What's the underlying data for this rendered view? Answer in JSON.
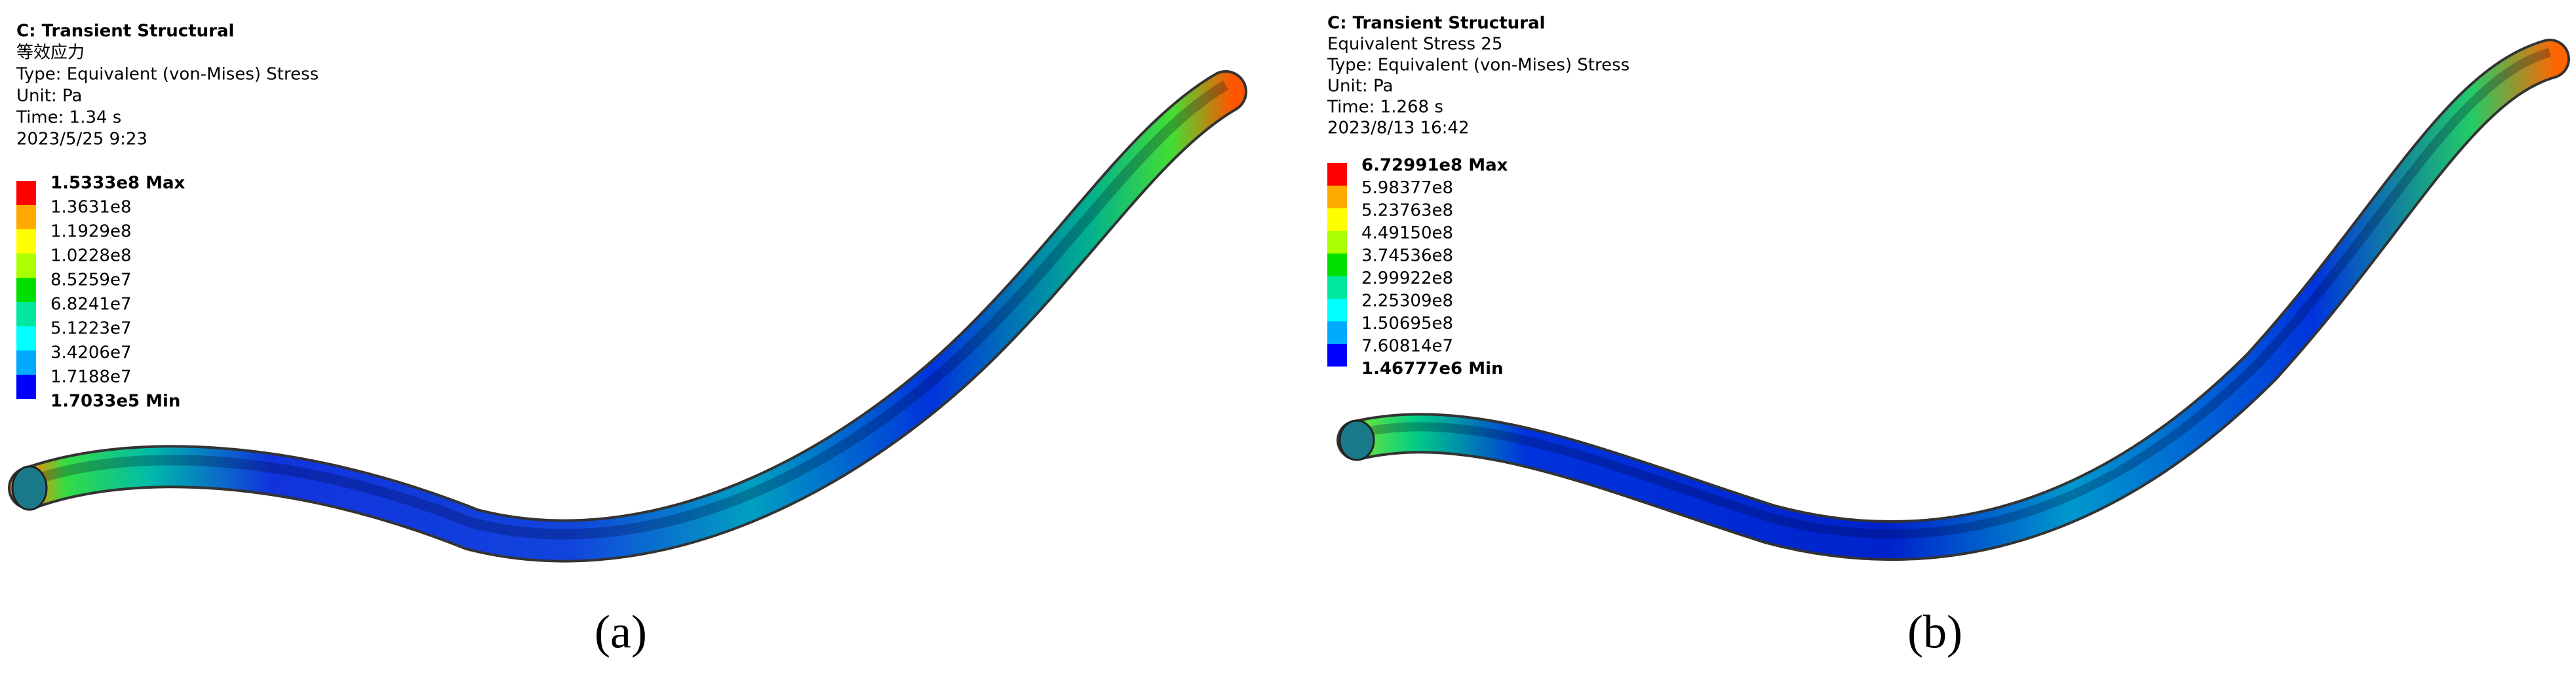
{
  "panels": [
    {
      "header": [
        "C: Transient Structural",
        "等效应力",
        "Type: Equivalent (von-Mises) Stress",
        "Unit: Pa",
        "Time: 1.34 s",
        "2023/5/25 9:23"
      ],
      "legend": [
        "1.5333e8 Max",
        "1.3631e8",
        "1.1929e8",
        "1.0228e8",
        "8.5259e7",
        "6.8241e7",
        "5.1223e7",
        "3.4206e7",
        "1.7188e7",
        "1.7033e5 Min"
      ],
      "caption": "(a)"
    },
    {
      "header": [
        "C: Transient Structural",
        "Equivalent Stress 25",
        "Type: Equivalent (von-Mises) Stress",
        "Unit: Pa",
        "Time: 1.268 s",
        "2023/8/13 16:42"
      ],
      "legend": [
        "6.72991e8 Max",
        "5.98377e8",
        "5.23763e8",
        "4.49150e8",
        "3.74536e8",
        "2.99922e8",
        "2.25309e8",
        "1.50695e8",
        "7.60814e7",
        "1.46777e6 Min"
      ],
      "caption": "(b)"
    }
  ]
}
